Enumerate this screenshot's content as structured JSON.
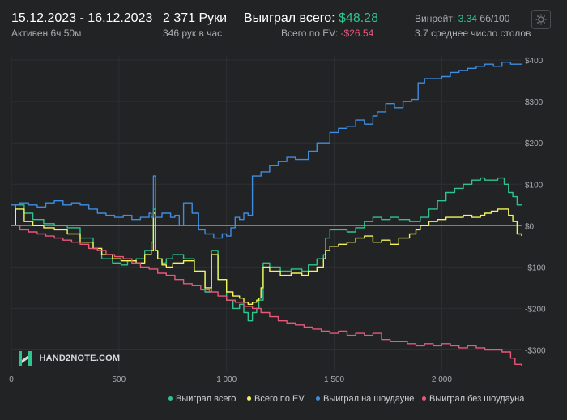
{
  "header": {
    "date_range": "15.12.2023 - 16.12.2023",
    "active_time": "Активен 6ч 50м",
    "hands": "2 371 Руки",
    "hands_per_hour": "346 рук в час",
    "won_total_label": "Выиграл всего:",
    "won_total_value": "$48.28",
    "ev_total_label": "Всего по EV:",
    "ev_total_value": "-$26.54",
    "winrate_label": "Винрейт:",
    "winrate_value": "3.34",
    "winrate_unit": "бб/100",
    "avg_tables": "3.7 среднее число столов"
  },
  "logo": {
    "text": "HAND2NOTE.COM"
  },
  "colors": {
    "background": "#222325",
    "grid": "#2d2f33",
    "zero_line": "#8a8d92",
    "won_total": "#2fc48d",
    "total_ev": "#f3f35b",
    "won_showdown": "#3f8de0",
    "won_no_showdown": "#e8587a"
  },
  "chart_data": {
    "type": "line",
    "xlabel": "",
    "ylabel": "",
    "xlim": [
      0,
      2371
    ],
    "ylim": [
      -350,
      410
    ],
    "x_ticks": [
      0,
      500,
      1000,
      1500,
      2000
    ],
    "x_tick_labels": [
      "0",
      "500",
      "1 000",
      "1 500",
      "2 000"
    ],
    "y_ticks": [
      400,
      300,
      200,
      100,
      0,
      -100,
      -200,
      -300
    ],
    "y_tick_labels": [
      "$400",
      "$300",
      "$200",
      "$100",
      "$0",
      "-$100",
      "-$200",
      "-$300"
    ],
    "grid": true,
    "legend_position": "bottom-right",
    "series": [
      {
        "name": "Выиграл всего",
        "color": "#2fc48d",
        "x": [
          0,
          20,
          60,
          100,
          150,
          200,
          260,
          320,
          380,
          420,
          470,
          510,
          540,
          580,
          620,
          650,
          660,
          670,
          680,
          700,
          720,
          750,
          800,
          850,
          900,
          930,
          960,
          1000,
          1030,
          1060,
          1080,
          1100,
          1120,
          1140,
          1150,
          1160,
          1170,
          1200,
          1250,
          1300,
          1350,
          1380,
          1420,
          1450,
          1460,
          1480,
          1520,
          1560,
          1600,
          1640,
          1680,
          1720,
          1760,
          1800,
          1850,
          1880,
          1900,
          1940,
          1980,
          2020,
          2060,
          2100,
          2140,
          2180,
          2200,
          2230,
          2260,
          2290,
          2310,
          2330,
          2350,
          2371
        ],
        "y": [
          0,
          50,
          30,
          15,
          5,
          0,
          -5,
          -30,
          -55,
          -80,
          -90,
          -95,
          -85,
          -80,
          -60,
          -40,
          40,
          -60,
          -80,
          -90,
          -80,
          -70,
          -80,
          -110,
          -160,
          -60,
          -130,
          -180,
          -200,
          -190,
          -210,
          -230,
          -210,
          -200,
          -180,
          -180,
          -90,
          -100,
          -110,
          -105,
          -110,
          -95,
          -80,
          -70,
          -30,
          -10,
          -10,
          -15,
          -5,
          10,
          20,
          15,
          20,
          15,
          10,
          10,
          20,
          40,
          60,
          80,
          90,
          100,
          110,
          115,
          110,
          110,
          115,
          100,
          80,
          70,
          50,
          50
        ]
      },
      {
        "name": "Всего по EV",
        "color": "#f3f35b",
        "x": [
          0,
          20,
          60,
          100,
          150,
          200,
          260,
          320,
          380,
          420,
          470,
          510,
          540,
          580,
          620,
          650,
          660,
          670,
          680,
          700,
          720,
          750,
          800,
          850,
          900,
          930,
          960,
          1000,
          1030,
          1060,
          1080,
          1100,
          1120,
          1140,
          1150,
          1160,
          1170,
          1200,
          1250,
          1300,
          1350,
          1380,
          1420,
          1450,
          1460,
          1480,
          1520,
          1560,
          1600,
          1640,
          1680,
          1720,
          1760,
          1800,
          1850,
          1880,
          1900,
          1940,
          1980,
          2020,
          2060,
          2100,
          2140,
          2180,
          2200,
          2230,
          2260,
          2290,
          2310,
          2330,
          2350,
          2371
        ],
        "y": [
          0,
          40,
          10,
          0,
          -5,
          -10,
          -20,
          -40,
          -55,
          -70,
          -80,
          -85,
          -85,
          -90,
          -70,
          -60,
          30,
          -60,
          -80,
          -95,
          -100,
          -90,
          -85,
          -110,
          -150,
          -70,
          -130,
          -160,
          -170,
          -175,
          -185,
          -190,
          -185,
          -180,
          -175,
          -150,
          -100,
          -110,
          -120,
          -115,
          -120,
          -110,
          -100,
          -80,
          -60,
          -50,
          -45,
          -40,
          -30,
          -25,
          -40,
          -35,
          -45,
          -30,
          -20,
          -10,
          0,
          10,
          15,
          20,
          20,
          25,
          20,
          25,
          30,
          35,
          40,
          40,
          25,
          10,
          -20,
          -25
        ]
      },
      {
        "name": "Выиграл на шоудауне",
        "color": "#3f8de0",
        "x": [
          0,
          40,
          80,
          120,
          160,
          200,
          240,
          280,
          320,
          360,
          400,
          440,
          480,
          520,
          560,
          600,
          640,
          650,
          660,
          670,
          700,
          740,
          760,
          780,
          800,
          840,
          870,
          900,
          940,
          980,
          1000,
          1020,
          1040,
          1060,
          1080,
          1100,
          1120,
          1160,
          1200,
          1240,
          1280,
          1320,
          1380,
          1420,
          1480,
          1520,
          1560,
          1600,
          1640,
          1680,
          1700,
          1740,
          1780,
          1820,
          1860,
          1890,
          1920,
          1960,
          2000,
          2040,
          2080,
          2120,
          2160,
          2200,
          2240,
          2280,
          2320,
          2371
        ],
        "y": [
          50,
          55,
          50,
          45,
          55,
          60,
          50,
          55,
          50,
          40,
          30,
          25,
          20,
          25,
          15,
          20,
          30,
          20,
          120,
          20,
          30,
          20,
          25,
          0,
          55,
          30,
          -10,
          -20,
          -30,
          -20,
          -25,
          -5,
          20,
          15,
          30,
          25,
          120,
          130,
          145,
          155,
          165,
          160,
          180,
          200,
          225,
          235,
          240,
          255,
          245,
          265,
          275,
          295,
          285,
          300,
          305,
          345,
          355,
          355,
          360,
          370,
          375,
          380,
          385,
          390,
          385,
          395,
          390,
          390
        ]
      },
      {
        "name": "Выиграл без шоудауна",
        "color": "#e8587a",
        "x": [
          0,
          40,
          80,
          120,
          160,
          200,
          240,
          280,
          320,
          360,
          400,
          440,
          480,
          520,
          560,
          600,
          640,
          680,
          720,
          760,
          800,
          840,
          880,
          920,
          960,
          1000,
          1040,
          1080,
          1120,
          1160,
          1200,
          1240,
          1280,
          1320,
          1360,
          1400,
          1440,
          1480,
          1520,
          1560,
          1600,
          1640,
          1680,
          1720,
          1760,
          1800,
          1840,
          1880,
          1920,
          1960,
          2000,
          2040,
          2080,
          2120,
          2160,
          2200,
          2240,
          2280,
          2320,
          2340,
          2371
        ],
        "y": [
          0,
          -10,
          -15,
          -20,
          -25,
          -30,
          -35,
          -40,
          -45,
          -55,
          -60,
          -70,
          -75,
          -80,
          -90,
          -100,
          -105,
          -115,
          -120,
          -130,
          -140,
          -145,
          -155,
          -160,
          -170,
          -180,
          -185,
          -195,
          -200,
          -210,
          -220,
          -230,
          -235,
          -240,
          -245,
          -250,
          -255,
          -260,
          -255,
          -265,
          -260,
          -265,
          -260,
          -275,
          -280,
          -280,
          -285,
          -290,
          -285,
          -290,
          -285,
          -290,
          -295,
          -290,
          -295,
          -300,
          -300,
          -305,
          -320,
          -335,
          -340
        ]
      }
    ]
  },
  "legend": [
    {
      "label": "Выиграл всего",
      "color": "#2fc48d"
    },
    {
      "label": "Всего по EV",
      "color": "#f3f35b"
    },
    {
      "label": "Выиграл на шоудауне",
      "color": "#3f8de0"
    },
    {
      "label": "Выиграл без шоудауна",
      "color": "#e8587a"
    }
  ]
}
